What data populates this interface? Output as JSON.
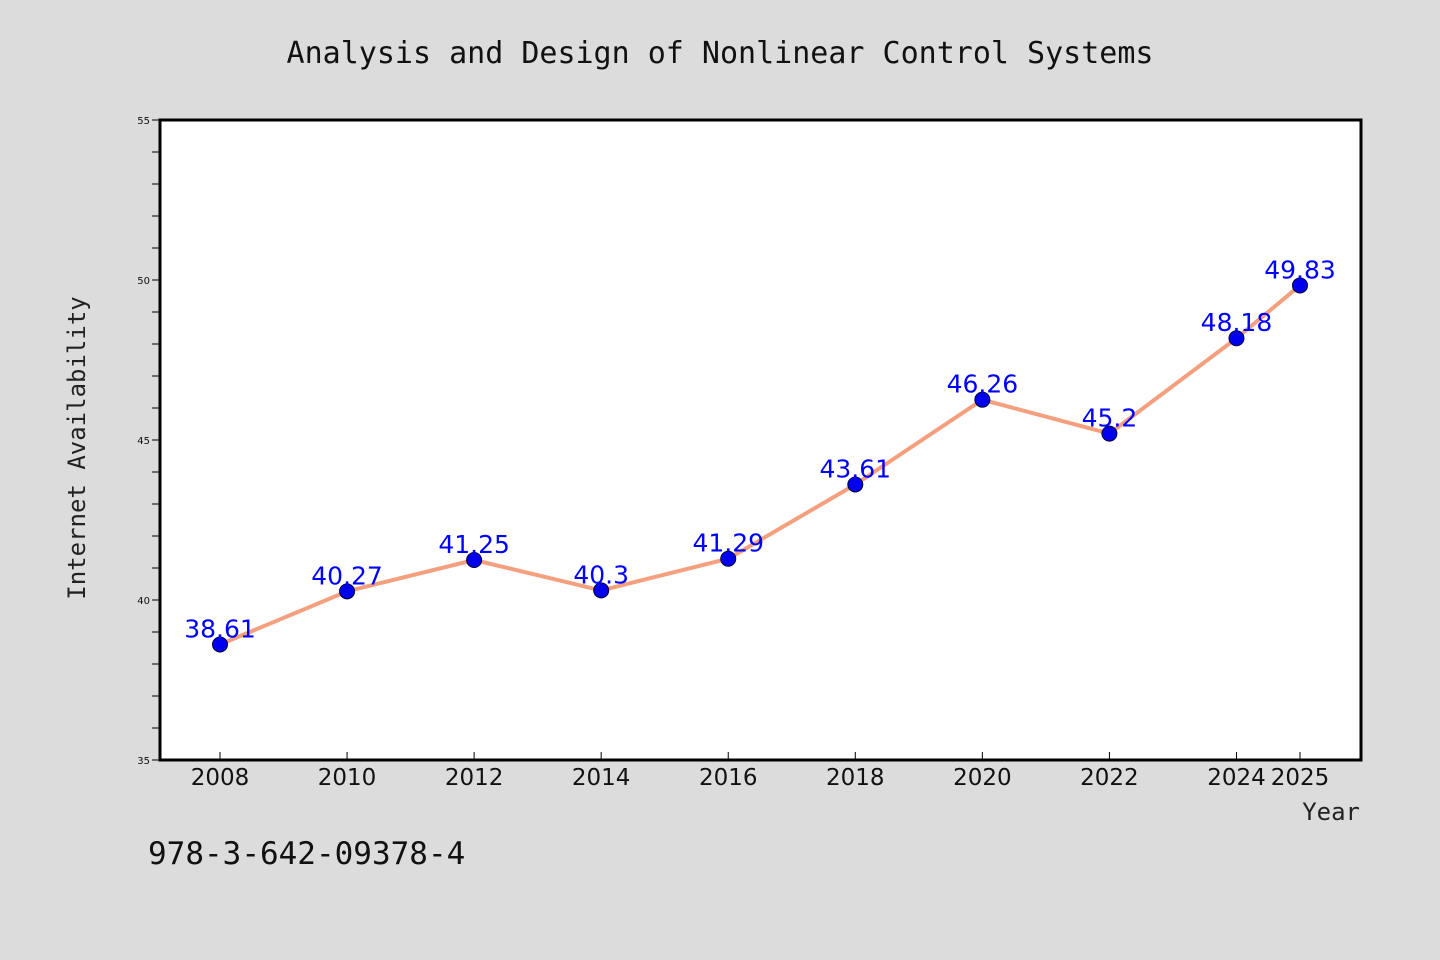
{
  "chart_data": {
    "type": "line",
    "title": "Analysis and Design of Nonlinear Control Systems",
    "xlabel": "Year",
    "ylabel": "Internet Availability",
    "categories": [
      "2008",
      "2010",
      "2012",
      "2014",
      "2016",
      "2018",
      "2020",
      "2022",
      "2024",
      "2025"
    ],
    "series": [
      {
        "values": [
          38.61,
          40.27,
          41.25,
          40.3,
          41.29,
          43.61,
          46.26,
          45.2,
          48.18,
          49.83
        ],
        "labels": [
          "38.61",
          "40.27",
          "41.25",
          "40.3",
          "41.29",
          "43.61",
          "46.26",
          "45.2",
          "48.18",
          "49.83"
        ],
        "line_color": "#f4a07e",
        "marker_color": "#0000ee"
      }
    ],
    "ylim": [
      35,
      55
    ],
    "yticks": [
      "35",
      "40",
      "45",
      "50",
      "55"
    ],
    "grid": false,
    "legend": "none"
  },
  "footnote": "978-3-642-09378-4",
  "colors": {
    "background": "#dcdcdc",
    "plot_background": "#ffffff",
    "data_label": "#0000ff"
  }
}
